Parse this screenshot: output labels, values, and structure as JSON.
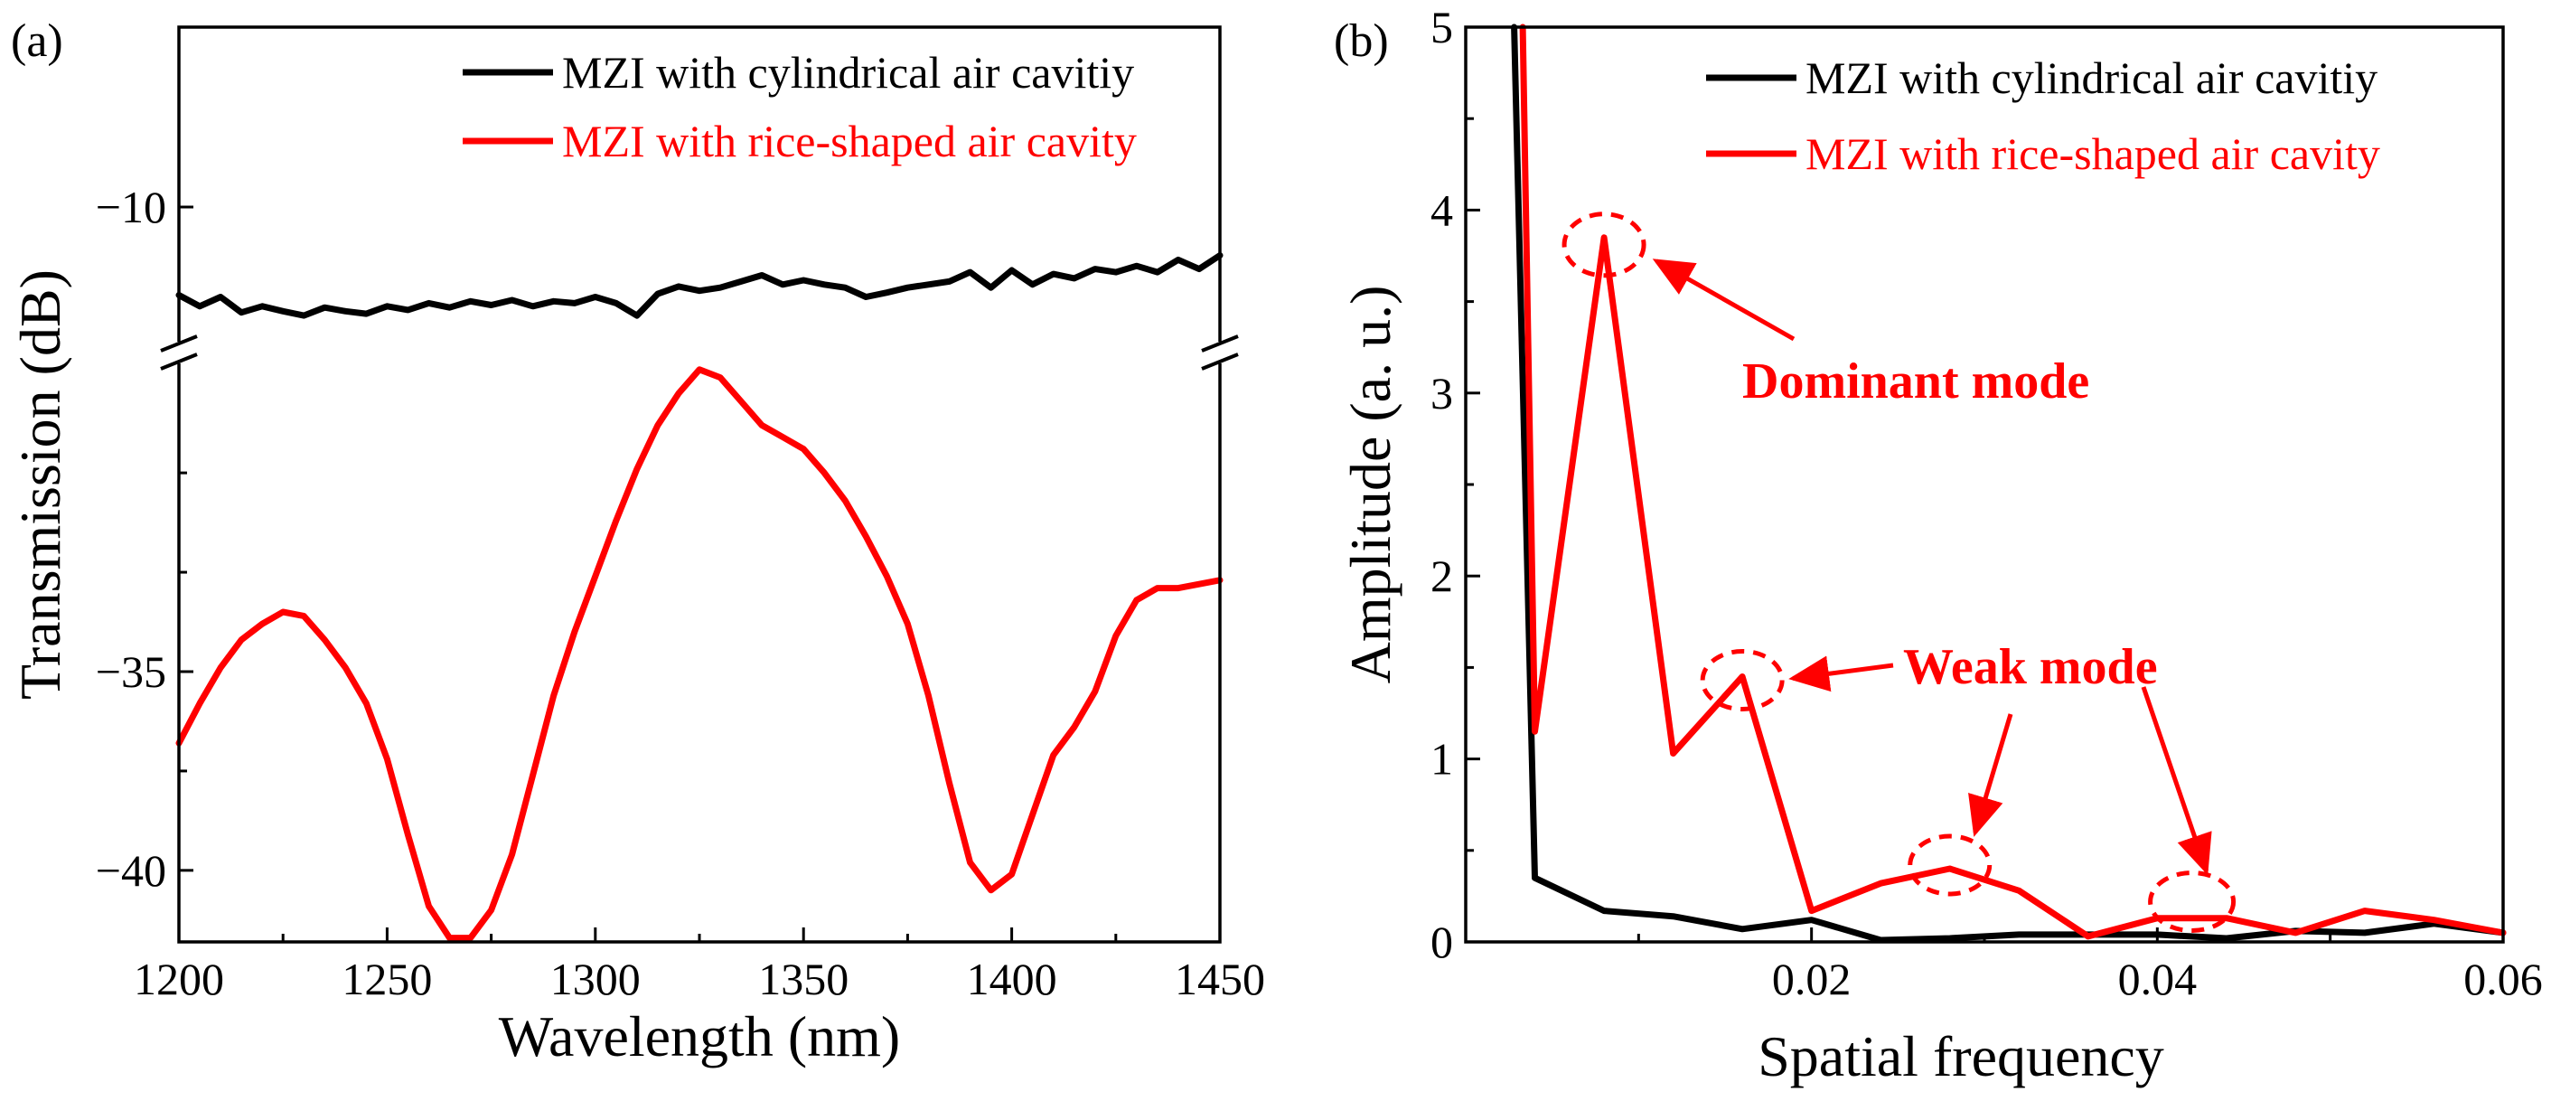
{
  "chart_data": [
    {
      "panel_label": "(a)",
      "type": "line",
      "xlabel": "Wavelength (nm)",
      "ylabel": "Transmission (dB)",
      "xlim": [
        1200,
        1450
      ],
      "x_ticks": [
        1200,
        1250,
        1300,
        1350,
        1400,
        1450
      ],
      "x_tick_labels": [
        "1200",
        "1250",
        "1300",
        "1350",
        "1400",
        "1450"
      ],
      "broken_axis": true,
      "upper_ylim": [
        -12.2,
        -7.1
      ],
      "lower_ylim": [
        -41.8,
        -27.2
      ],
      "y_ticks": [
        -10,
        -35,
        -40
      ],
      "y_tick_labels": [
        "−10",
        "−35",
        "−40"
      ],
      "legend_position": "top-right",
      "series": [
        {
          "name": "MZI with cylindrical air cavitiy",
          "color": "#000000",
          "x": [
            1200,
            1205,
            1210,
            1215,
            1220,
            1225,
            1230,
            1235,
            1240,
            1245,
            1250,
            1255,
            1260,
            1265,
            1270,
            1275,
            1280,
            1285,
            1290,
            1295,
            1300,
            1305,
            1310,
            1315,
            1320,
            1325,
            1330,
            1335,
            1340,
            1345,
            1350,
            1355,
            1360,
            1365,
            1370,
            1375,
            1380,
            1385,
            1390,
            1395,
            1400,
            1405,
            1410,
            1415,
            1420,
            1425,
            1430,
            1435,
            1440,
            1445,
            1450
          ],
          "values": [
            -11.42,
            -11.6,
            -11.45,
            -11.7,
            -11.6,
            -11.68,
            -11.75,
            -11.62,
            -11.68,
            -11.72,
            -11.6,
            -11.66,
            -11.55,
            -11.62,
            -11.52,
            -11.58,
            -11.5,
            -11.6,
            -11.52,
            -11.55,
            -11.45,
            -11.55,
            -11.75,
            -11.4,
            -11.28,
            -11.35,
            -11.3,
            -11.2,
            -11.1,
            -11.25,
            -11.18,
            -11.25,
            -11.3,
            -11.45,
            -11.38,
            -11.3,
            -11.25,
            -11.2,
            -11.05,
            -11.3,
            -11.02,
            -11.25,
            -11.08,
            -11.15,
            -11.0,
            -11.05,
            -10.95,
            -11.05,
            -10.85,
            -11.0,
            -10.78
          ]
        },
        {
          "name": "MZI with rice-shaped air cavity",
          "color": "#ff0000",
          "x": [
            1200,
            1205,
            1210,
            1215,
            1220,
            1225,
            1230,
            1235,
            1240,
            1245,
            1250,
            1255,
            1260,
            1265,
            1270,
            1275,
            1280,
            1285,
            1290,
            1295,
            1300,
            1305,
            1310,
            1315,
            1320,
            1325,
            1330,
            1335,
            1340,
            1345,
            1350,
            1355,
            1360,
            1365,
            1370,
            1375,
            1380,
            1385,
            1390,
            1395,
            1400,
            1405,
            1410,
            1415,
            1420,
            1425,
            1430,
            1435,
            1440,
            1445,
            1450
          ],
          "values": [
            -36.8,
            -35.8,
            -34.9,
            -34.2,
            -33.8,
            -33.5,
            -33.6,
            -34.2,
            -34.9,
            -35.8,
            -37.2,
            -39.1,
            -40.9,
            -41.7,
            -41.7,
            -41.0,
            -39.6,
            -37.6,
            -35.6,
            -34.0,
            -32.6,
            -31.2,
            -29.9,
            -28.8,
            -28.0,
            -27.4,
            -27.6,
            -28.2,
            -28.8,
            -29.1,
            -29.4,
            -30.0,
            -30.7,
            -31.6,
            -32.6,
            -33.8,
            -35.6,
            -37.8,
            -39.8,
            -40.5,
            -40.1,
            -38.6,
            -37.1,
            -36.4,
            -35.5,
            -34.1,
            -33.2,
            -32.9,
            -32.9,
            -32.8,
            -32.7
          ]
        }
      ]
    },
    {
      "panel_label": "(b)",
      "type": "line",
      "xlabel": "Spatial frequency",
      "ylabel": "Amplitude (a. u.)",
      "xlim": [
        0,
        0.06
      ],
      "ylim": [
        0,
        5
      ],
      "x_ticks": [
        0.02,
        0.04,
        0.06
      ],
      "x_tick_labels": [
        "0.02",
        "0.04",
        "0.06"
      ],
      "y_ticks": [
        0,
        1,
        2,
        3,
        4,
        5
      ],
      "y_tick_labels": [
        "0",
        "1",
        "2",
        "3",
        "4",
        "5"
      ],
      "legend_position": "top-right",
      "series": [
        {
          "name": "MZI with cylindrical air cavitiy",
          "color": "#000000",
          "x": [
            0.0028,
            0.004,
            0.008,
            0.012,
            0.016,
            0.02,
            0.024,
            0.028,
            0.032,
            0.036,
            0.04,
            0.044,
            0.048,
            0.052,
            0.056,
            0.06
          ],
          "values": [
            5.0,
            0.35,
            0.17,
            0.14,
            0.07,
            0.12,
            0.01,
            0.02,
            0.04,
            0.04,
            0.04,
            0.02,
            0.06,
            0.05,
            0.1,
            0.05
          ]
        },
        {
          "name": "MZI with rice-shaped air cavity",
          "color": "#ff0000",
          "x": [
            0.0033,
            0.004,
            0.008,
            0.012,
            0.016,
            0.02,
            0.024,
            0.028,
            0.032,
            0.036,
            0.04,
            0.044,
            0.048,
            0.052,
            0.056,
            0.06
          ],
          "values": [
            5.0,
            1.15,
            3.85,
            1.03,
            1.45,
            0.17,
            0.32,
            0.4,
            0.28,
            0.03,
            0.13,
            0.13,
            0.05,
            0.17,
            0.12,
            0.05
          ]
        }
      ],
      "annotations": {
        "dominant": {
          "text": "Dominant mode",
          "x": 0.008,
          "y": 3.85
        },
        "weak": {
          "text": "Weak mode",
          "targets": [
            [
              0.016,
              1.45
            ],
            [
              0.028,
              0.4
            ],
            [
              0.042,
              0.2
            ]
          ]
        }
      }
    }
  ]
}
